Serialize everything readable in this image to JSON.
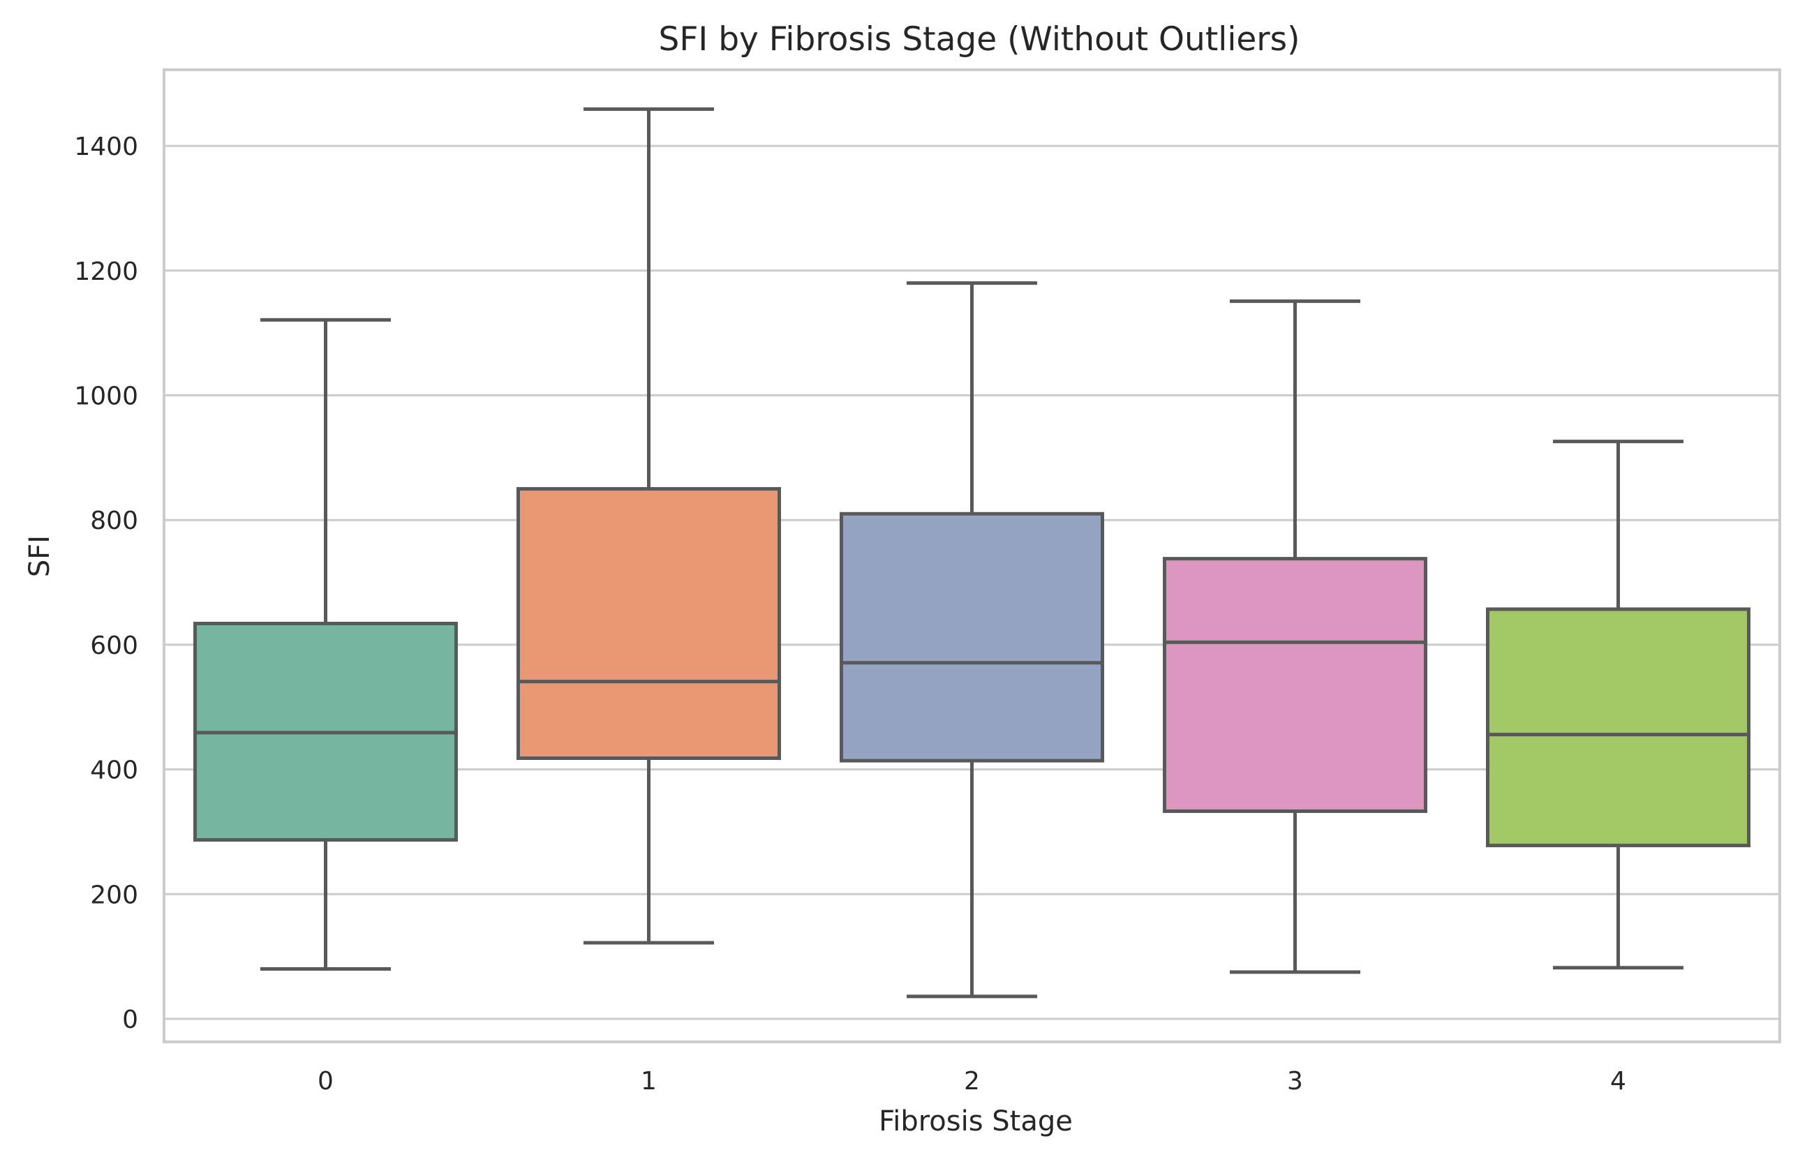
{
  "chart_data": {
    "type": "box",
    "title": "SFI by Fibrosis Stage (Without Outliers)",
    "xlabel": "Fibrosis Stage",
    "ylabel": "SFI",
    "ylim": [
      -40,
      1530
    ],
    "yticks": [
      0,
      200,
      400,
      600,
      800,
      1000,
      1200,
      1400
    ],
    "grid": "horizontal",
    "categories": [
      "0",
      "1",
      "2",
      "3",
      "4"
    ],
    "boxes": [
      {
        "category": "0",
        "whisker_low": 80,
        "q1": 287,
        "median": 459,
        "q3": 634,
        "whisker_high": 1121,
        "color": "#76b6a0"
      },
      {
        "category": "1",
        "whisker_low": 122,
        "q1": 418,
        "median": 541,
        "q3": 850,
        "whisker_high": 1459,
        "color": "#e99774"
      },
      {
        "category": "2",
        "whisker_low": 36,
        "q1": 414,
        "median": 571,
        "q3": 810,
        "whisker_high": 1180,
        "color": "#94a4c2"
      },
      {
        "category": "3",
        "whisker_low": 75,
        "q1": 333,
        "median": 604,
        "q3": 738,
        "whisker_high": 1151,
        "color": "#dc96c0"
      },
      {
        "category": "4",
        "whisker_low": 82,
        "q1": 278,
        "median": 456,
        "q3": 657,
        "whisker_high": 926,
        "color": "#a2c766"
      }
    ]
  }
}
